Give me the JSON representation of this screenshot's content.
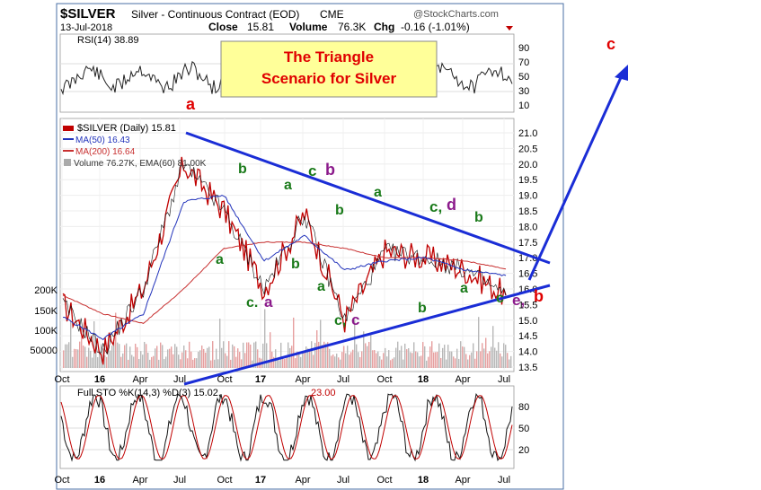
{
  "header": {
    "symbol": "$SILVER",
    "name": "Silver - Continuous Contract (EOD)",
    "exchange": "CME",
    "brand": "@StockCharts.com",
    "date": "13-Jul-2018",
    "close_label": "Close",
    "close_value": "15.81",
    "volume_label": "Volume",
    "volume_value": "76.3K",
    "chg_label": "Chg",
    "chg_value": "-0.16 (-1.01%)"
  },
  "rsi_panel": {
    "label": "RSI(14) 38.89",
    "ticks": [
      "90",
      "70",
      "50",
      "30",
      "10"
    ]
  },
  "callout": {
    "line1": "The Triangle",
    "line2": "Scenario for Silver"
  },
  "price_panel": {
    "legend": {
      "price": "$SILVER (Daily) 15.81",
      "ma50": "MA(50) 16.43",
      "ma200": "MA(200) 16.64",
      "volume": "Volume 76.27K, EMA(60) 81.00K"
    },
    "y_ticks": [
      "21.0",
      "20.5",
      "20.0",
      "19.5",
      "19.0",
      "18.5",
      "18.0",
      "17.5",
      "17.0",
      "16.5",
      "16.0",
      "15.5",
      "15.0",
      "14.5",
      "14.0",
      "13.5"
    ],
    "volume_ticks": [
      "200K",
      "150K",
      "100K",
      "50000"
    ]
  },
  "x_ticks": [
    "Oct",
    "16",
    "Apr",
    "Jul",
    "Oct",
    "17",
    "Apr",
    "Jul",
    "Oct",
    "18",
    "Apr",
    "Jul"
  ],
  "sto_panel": {
    "label": "Full STO %K(14,3) %D(3) 15.02,",
    "label_red": "23.00",
    "ticks": [
      "80",
      "50",
      "20"
    ]
  },
  "annotations": [
    {
      "text": "a",
      "color": "#e00000"
    },
    {
      "text": "b",
      "color": "#1a7a1a"
    },
    {
      "text": "a",
      "color": "#1a7a1a"
    },
    {
      "text": "c",
      "color": "#1a7a1a"
    },
    {
      "text": "b",
      "color": "#8b1a8b"
    },
    {
      "text": "a",
      "color": "#1a7a1a"
    },
    {
      "text": "b",
      "color": "#1a7a1a"
    },
    {
      "text": "a",
      "color": "#1a7a1a"
    },
    {
      "text": "c,",
      "color": "#1a7a1a"
    },
    {
      "text": "d",
      "color": "#8b1a8b"
    },
    {
      "text": "b",
      "color": "#1a7a1a"
    },
    {
      "text": "c.",
      "color": "#1a7a1a"
    },
    {
      "text": "a",
      "color": "#8b1a8b"
    },
    {
      "text": "b",
      "color": "#1a7a1a"
    },
    {
      "text": "a",
      "color": "#1a7a1a"
    },
    {
      "text": "c,",
      "color": "#1a7a1a"
    },
    {
      "text": "c",
      "color": "#8b1a8b"
    },
    {
      "text": "b",
      "color": "#1a7a1a"
    },
    {
      "text": "a",
      "color": "#1a7a1a"
    },
    {
      "text": "c",
      "color": "#1a7a1a"
    },
    {
      "text": "e,",
      "color": "#8b1a8b"
    },
    {
      "text": "b",
      "color": "#e00000"
    },
    {
      "text": "c",
      "color": "#e00000"
    }
  ],
  "colors": {
    "price": "#c00000",
    "ma50": "#2233bb",
    "ma200": "#c83030",
    "trendline": "#1a2dd6",
    "volume": "#aaaaaa",
    "callout_fill": "#ffff99"
  },
  "chart_data": {
    "type": "line",
    "title": "$SILVER Silver - Continuous Contract (EOD)",
    "x": [
      "Oct 2015",
      "Jan 2016",
      "Apr 2016",
      "Jul 2016",
      "Oct 2016",
      "Jan 2017",
      "Apr 2017",
      "Jul 2017",
      "Oct 2017",
      "Jan 2018",
      "Apr 2018",
      "Jul 2018"
    ],
    "series": [
      {
        "name": "$SILVER (Daily)",
        "values": [
          15.5,
          14.0,
          16.0,
          20.0,
          18.5,
          16.0,
          18.4,
          15.0,
          17.2,
          17.0,
          16.6,
          15.8
        ]
      },
      {
        "name": "MA(50)",
        "values": [
          15.1,
          14.4,
          15.2,
          18.8,
          19.0,
          16.9,
          17.7,
          16.6,
          16.9,
          17.0,
          16.6,
          16.43
        ]
      },
      {
        "name": "MA(200)",
        "values": [
          15.8,
          15.2,
          14.9,
          16.0,
          17.3,
          17.5,
          17.5,
          17.3,
          17.0,
          17.0,
          16.9,
          16.64
        ]
      }
    ],
    "ylim": [
      13.5,
      21.0
    ]
  }
}
